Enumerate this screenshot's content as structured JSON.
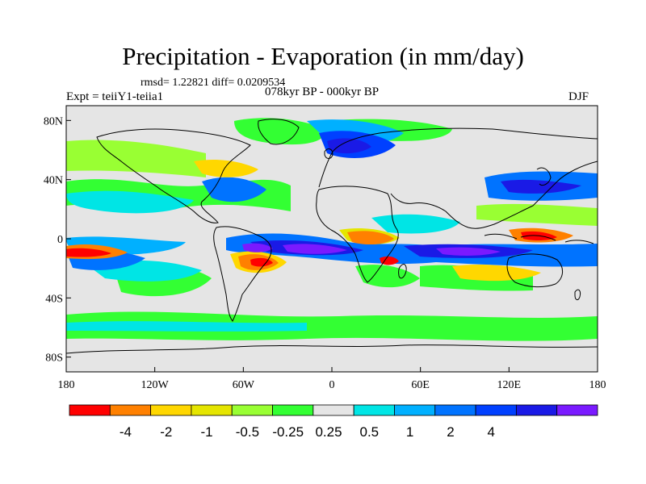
{
  "title": "Precipitation - Evaporation (in mm/day)",
  "stats": "rmsd= 1.22821 diff= 0.0209534",
  "experiment": "Expt = teiiY1-teiia1",
  "period": "078kyr BP - 000kyr BP",
  "season": "DJF",
  "lat_ticks": [
    "80N",
    "40N",
    "0",
    "40S",
    "80S"
  ],
  "lon_ticks": [
    "180",
    "120W",
    "60W",
    "0",
    "60E",
    "120E",
    "180"
  ],
  "colorbar": {
    "colors": [
      "#ff0000",
      "#ff8000",
      "#ffd700",
      "#e5e500",
      "#99ff33",
      "#33ff33",
      "#e5e5e5",
      "#00e5e5",
      "#00b0ff",
      "#0073ff",
      "#0040ff",
      "#1a1ae6",
      "#7a1aff"
    ],
    "labels": [
      "-4",
      "-2",
      "-1",
      "-0.5",
      "-0.25",
      "0.25",
      "0.5",
      "1",
      "2",
      "4"
    ]
  },
  "colors": {
    "land": "#e5e5e5",
    "coast": "#000000"
  }
}
